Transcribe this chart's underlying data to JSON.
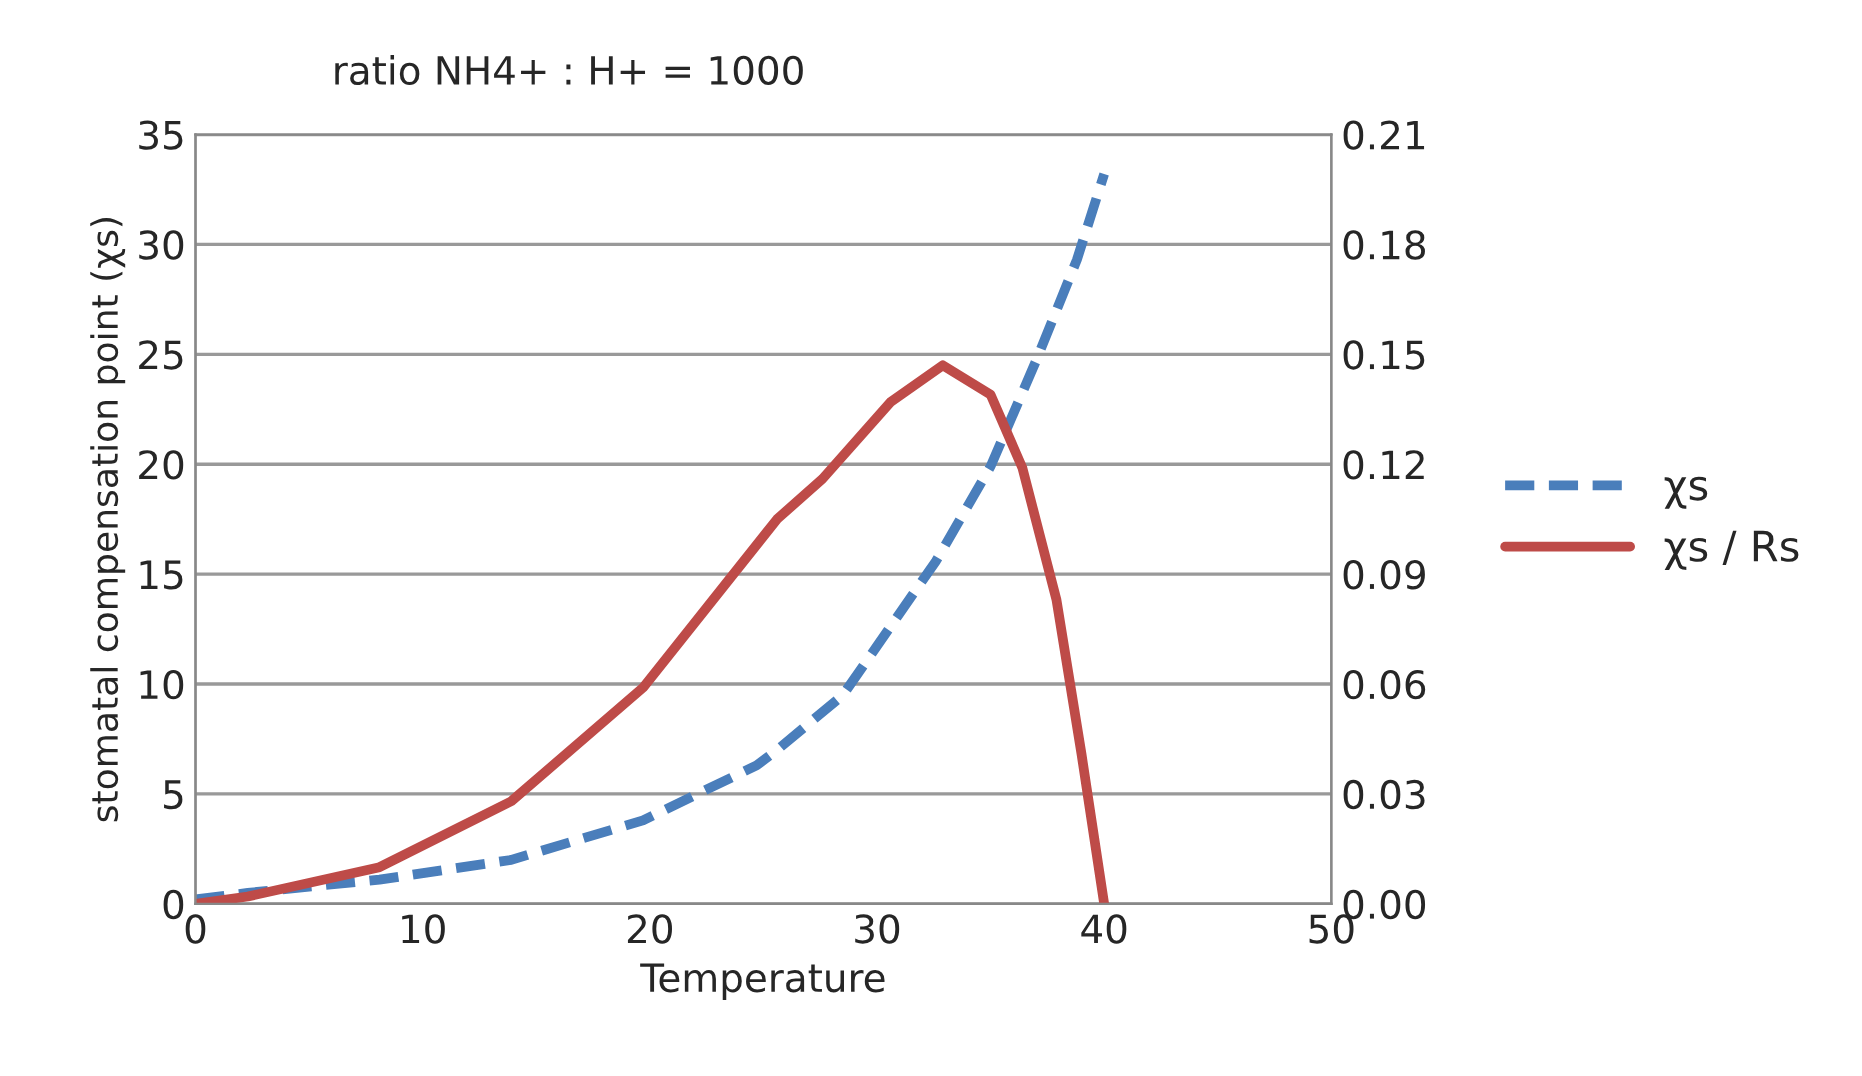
{
  "chart_data": {
    "type": "line",
    "title": "ratio NH4+ : H+ = 1000",
    "xlabel": "Temperature",
    "ylabel": "stomatal compensation point (χs)",
    "xlim": [
      0,
      50
    ],
    "xticks": [
      0,
      10,
      20,
      30,
      40,
      50
    ],
    "ylim": [
      0,
      35
    ],
    "yticks": [
      0,
      5,
      10,
      15,
      20,
      25,
      30,
      35
    ],
    "y2lim": [
      0,
      0.21
    ],
    "y2ticks": [
      {
        "value": 0,
        "label": "0.00"
      },
      {
        "value": 0.03,
        "label": "0.03"
      },
      {
        "value": 0.06,
        "label": "0.06"
      },
      {
        "value": 0.09,
        "label": "0.09"
      },
      {
        "value": 0.12,
        "label": "0.12"
      },
      {
        "value": 0.15,
        "label": "0.15"
      },
      {
        "value": 0.18,
        "label": "0.18"
      },
      {
        "value": 0.21,
        "label": "0.21"
      }
    ],
    "grid": "y",
    "legend": "right",
    "series": [
      {
        "name": "χs",
        "color": "#4a7ebb",
        "line_style": "dashed",
        "x": [
          0,
          2.3,
          8.1,
          13.9,
          19.7,
          24.7,
          25.6,
          28.5,
          32.6,
          35,
          37,
          38.8,
          40
        ],
        "values": [
          0.2,
          0.5,
          1.1,
          2.0,
          3.8,
          6.3,
          7.0,
          9.5,
          15.6,
          19.9,
          24.7,
          29.3,
          33.2
        ]
      },
      {
        "name": "χs / Rs",
        "color": "#be4b48",
        "line_style": "solid",
        "axis": "y2",
        "x": [
          0,
          2.3,
          8.1,
          13.9,
          19.7,
          25.6,
          27.6,
          30.6,
          32.9,
          35,
          36.4,
          37.9,
          39,
          40
        ],
        "values": [
          0,
          0.002,
          0.01,
          0.028,
          0.059,
          0.105,
          0.116,
          0.137,
          0.147,
          0.139,
          0.119,
          0.083,
          0.041,
          0
        ]
      }
    ]
  }
}
